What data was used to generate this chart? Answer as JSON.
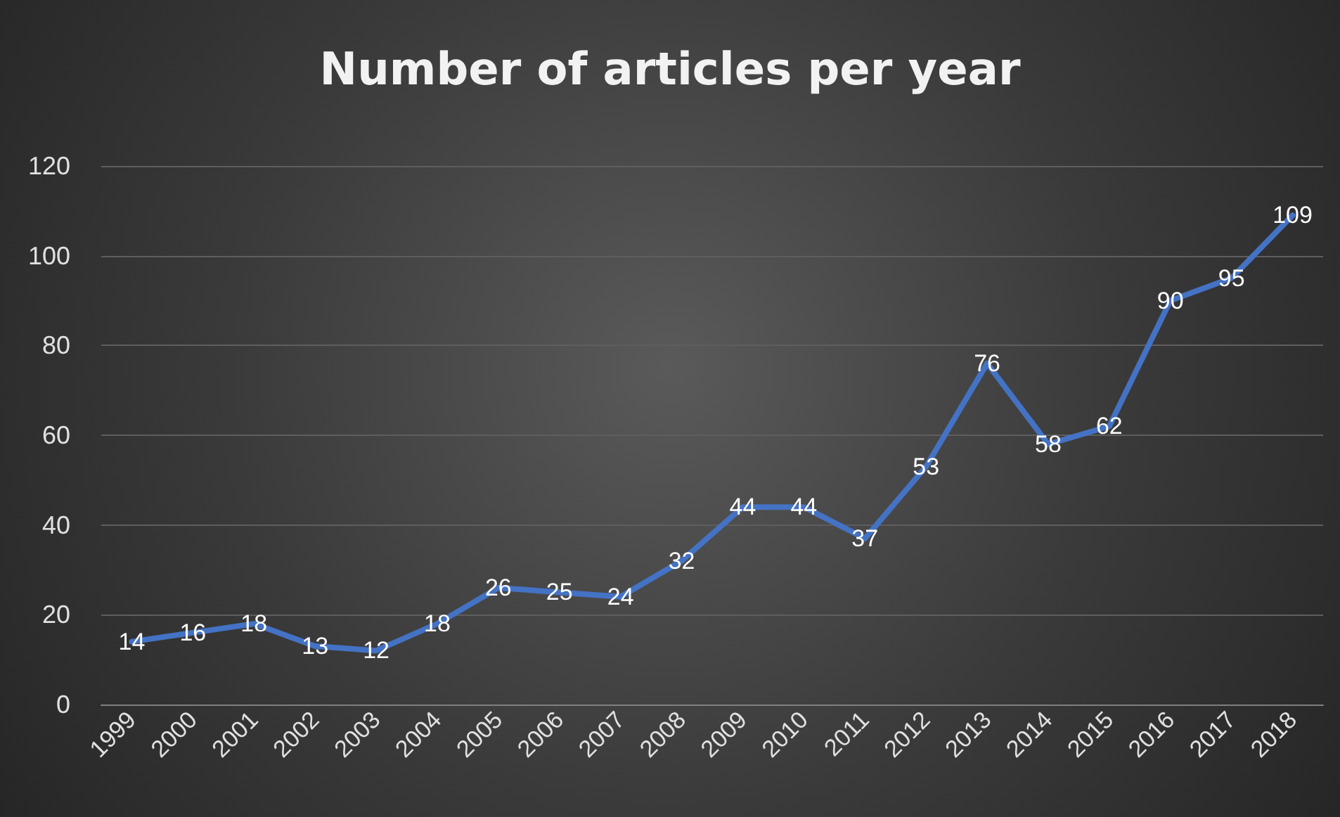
{
  "chart_data": {
    "type": "line",
    "title": "Number of articles per year",
    "categories": [
      "1999",
      "2000",
      "2001",
      "2002",
      "2003",
      "2004",
      "2005",
      "2006",
      "2007",
      "2008",
      "2009",
      "2010",
      "2011",
      "2012",
      "2013",
      "2014",
      "2015",
      "2016",
      "2017",
      "2018"
    ],
    "series": [
      {
        "color": "#4472c4",
        "values": [
          14,
          16,
          18,
          13,
          12,
          18,
          26,
          25,
          24,
          32,
          44,
          44,
          37,
          53,
          76,
          58,
          62,
          90,
          95,
          109
        ]
      }
    ],
    "ylim": [
      0,
      120
    ],
    "yticks": [
      0,
      20,
      40,
      60,
      80,
      100,
      120
    ],
    "grid": "y",
    "marker": "none",
    "line_style": "solid",
    "data_labels": true
  }
}
